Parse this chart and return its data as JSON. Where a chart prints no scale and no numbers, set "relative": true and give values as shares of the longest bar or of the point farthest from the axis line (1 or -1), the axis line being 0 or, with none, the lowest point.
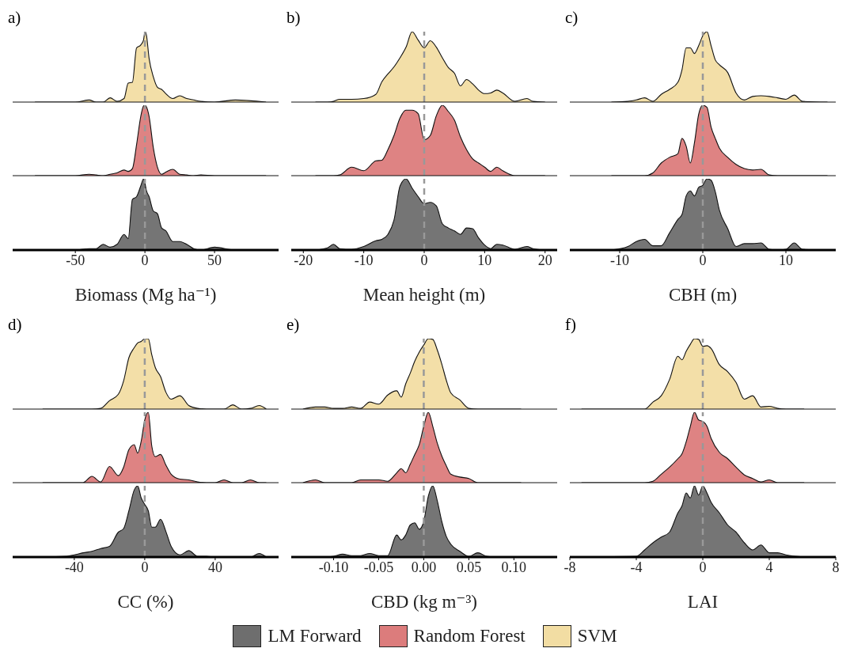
{
  "chart_data": [
    {
      "type": "area",
      "title": "a)",
      "relative": true,
      "tick_labels": false,
      "xlim": [
        -95,
        96
      ],
      "x": [
        -79,
        -70,
        -60,
        -50,
        -40,
        -35,
        -30,
        -25,
        -20,
        -15,
        -12,
        -9,
        -6,
        -3,
        -1,
        0,
        1,
        3,
        6,
        9,
        12,
        15,
        20,
        25,
        30,
        35,
        40,
        50,
        65,
        87
      ],
      "series": [
        {
          "name": "SVM",
          "color": "#f2dda3",
          "values": [
            0,
            0,
            0,
            0,
            0.03,
            0,
            0,
            0.06,
            0.01,
            0.05,
            0.27,
            0.28,
            0.77,
            0.81,
            0.88,
            1,
            0.96,
            0.62,
            0.36,
            0.21,
            0.18,
            0.12,
            0.05,
            0.09,
            0.05,
            0.03,
            0.01,
            0,
            0.03,
            0
          ]
        }
      ],
      "ref_lines": [
        {
          "axis": "x",
          "value": 0,
          "color": "#999999",
          "line_style": "dashed"
        }
      ]
    },
    {
      "type": "area",
      "relative": true,
      "tick_labels": false,
      "xlim": [
        -95,
        96
      ],
      "x": [
        -79,
        -70,
        -60,
        -50,
        -40,
        -35,
        -30,
        -25,
        -20,
        -15,
        -12,
        -9,
        -6,
        -3,
        -1,
        0,
        1,
        3,
        6,
        9,
        12,
        15,
        20,
        25,
        30,
        35,
        40,
        50,
        65,
        87
      ],
      "series": [
        {
          "name": "Random Forest",
          "color": "#dc7c7c",
          "values": [
            0,
            0,
            0,
            0,
            0.02,
            0.01,
            0,
            0.02,
            0.04,
            0.08,
            0.06,
            0.1,
            0.44,
            0.84,
            0.99,
            1,
            0.98,
            0.84,
            0.4,
            0.12,
            0.02,
            0.05,
            0.09,
            0.02,
            0.01,
            0,
            0.01,
            0,
            0,
            0
          ]
        }
      ],
      "ref_lines": [
        {
          "axis": "x",
          "value": 0,
          "color": "#999999",
          "line_style": "dashed"
        }
      ]
    },
    {
      "type": "area",
      "xlabel": "Biomass (Mg ha⁻¹)",
      "relative": true,
      "xlim": [
        -95,
        96
      ],
      "xticks": [
        -50,
        0,
        50
      ],
      "x": [
        -79,
        -70,
        -60,
        -50,
        -40,
        -35,
        -30,
        -25,
        -20,
        -15,
        -12,
        -9,
        -6,
        -3,
        -1,
        0,
        1,
        3,
        6,
        9,
        12,
        15,
        20,
        25,
        30,
        35,
        40,
        50,
        65,
        87
      ],
      "series": [
        {
          "name": "LM Forward",
          "color": "#6e6e6e",
          "values": [
            0,
            0,
            0,
            0,
            0.02,
            0.02,
            0.08,
            0.04,
            0.08,
            0.22,
            0.16,
            0.71,
            0.75,
            0.9,
            1,
            0.94,
            0.84,
            0.75,
            0.55,
            0.51,
            0.31,
            0.27,
            0.12,
            0.12,
            0.08,
            0.02,
            0,
            0.04,
            0,
            0
          ]
        }
      ],
      "ref_lines": [
        {
          "axis": "x",
          "value": 0,
          "color": "#999999",
          "line_style": "dashed"
        }
      ]
    },
    {
      "type": "area",
      "title": "b)",
      "relative": true,
      "tick_labels": false,
      "xlim": [
        -22,
        22
      ],
      "x": [
        -18,
        -16,
        -15,
        -14,
        -12,
        -10,
        -8,
        -7,
        -6,
        -5,
        -4,
        -3,
        -2,
        -1,
        0,
        1,
        2,
        3,
        4,
        5,
        6,
        7,
        8,
        9,
        10,
        11,
        12,
        13,
        15,
        17,
        18,
        20
      ],
      "series": [
        {
          "name": "SVM",
          "color": "#f2dda3",
          "values": [
            0,
            0,
            0.01,
            0.04,
            0.04,
            0.05,
            0.11,
            0.29,
            0.4,
            0.5,
            0.63,
            0.78,
            1,
            0.88,
            0.77,
            0.87,
            0.78,
            0.63,
            0.49,
            0.41,
            0.23,
            0.32,
            0.26,
            0.17,
            0.12,
            0.13,
            0.17,
            0.13,
            0.01,
            0.05,
            0.01,
            0
          ]
        }
      ],
      "ref_lines": [
        {
          "axis": "x",
          "value": 0,
          "color": "#999999",
          "line_style": "dashed"
        }
      ]
    },
    {
      "type": "area",
      "relative": true,
      "tick_labels": false,
      "xlim": [
        -22,
        22
      ],
      "x": [
        -18,
        -16,
        -15,
        -14,
        -12,
        -10,
        -8,
        -7,
        -6,
        -5,
        -4,
        -3,
        -2,
        -1,
        0,
        1,
        2,
        3,
        4,
        5,
        6,
        7,
        8,
        9,
        10,
        11,
        12,
        13,
        15,
        17,
        18,
        20
      ],
      "series": [
        {
          "name": "Random Forest",
          "color": "#dc7c7c",
          "values": [
            0,
            0,
            0,
            0.01,
            0.12,
            0.07,
            0.21,
            0.22,
            0.37,
            0.57,
            0.82,
            0.93,
            0.93,
            0.88,
            0.51,
            0.57,
            0.85,
            1,
            0.91,
            0.79,
            0.55,
            0.37,
            0.24,
            0.18,
            0.12,
            0.06,
            0.12,
            0.07,
            0,
            0,
            0,
            0
          ]
        }
      ],
      "ref_lines": [
        {
          "axis": "x",
          "value": 0,
          "color": "#999999",
          "line_style": "dashed"
        }
      ]
    },
    {
      "type": "area",
      "xlabel": "Mean height (m)",
      "relative": true,
      "xlim": [
        -22,
        22
      ],
      "xticks": [
        -20,
        -10,
        0,
        10,
        20
      ],
      "x": [
        -18,
        -16,
        -15,
        -14,
        -12,
        -10,
        -8,
        -7,
        -6,
        -5,
        -4,
        -3,
        -2,
        -1,
        0,
        1,
        2,
        3,
        4,
        5,
        6,
        7,
        8,
        9,
        10,
        11,
        12,
        13,
        15,
        17,
        18,
        20
      ],
      "series": [
        {
          "name": "LM Forward",
          "color": "#6e6e6e",
          "values": [
            0,
            0.03,
            0.08,
            0.02,
            0.01,
            0.05,
            0.13,
            0.15,
            0.22,
            0.42,
            0.9,
            1,
            0.87,
            0.75,
            0.65,
            0.67,
            0.62,
            0.37,
            0.31,
            0.27,
            0.22,
            0.31,
            0.3,
            0.17,
            0.07,
            0.02,
            0.08,
            0.07,
            0.01,
            0.05,
            0.02,
            0
          ]
        }
      ],
      "ref_lines": [
        {
          "axis": "x",
          "value": 0,
          "color": "#999999",
          "line_style": "dashed"
        }
      ]
    },
    {
      "type": "area",
      "title": "c)",
      "relative": true,
      "tick_labels": false,
      "xlim": [
        -16,
        16
      ],
      "x": [
        -11,
        -9,
        -8,
        -7,
        -6,
        -5,
        -4,
        -3,
        -2.5,
        -2,
        -1.5,
        -1,
        -0.5,
        0,
        0.5,
        1,
        1.5,
        2,
        3,
        4,
        5,
        6,
        7,
        8,
        9,
        10,
        11,
        12,
        15
      ],
      "series": [
        {
          "name": "SVM",
          "color": "#f2dda3",
          "values": [
            0,
            0.01,
            0.03,
            0.06,
            0.01,
            0.11,
            0.18,
            0.28,
            0.46,
            0.77,
            0.77,
            0.69,
            0.8,
            0.94,
            1,
            0.8,
            0.6,
            0.53,
            0.42,
            0.13,
            0.03,
            0.08,
            0.09,
            0.08,
            0.06,
            0.04,
            0.1,
            0.01,
            0
          ]
        }
      ],
      "ref_lines": [
        {
          "axis": "x",
          "value": 0,
          "color": "#999999",
          "line_style": "dashed"
        }
      ]
    },
    {
      "type": "area",
      "relative": true,
      "tick_labels": false,
      "xlim": [
        -16,
        16
      ],
      "x": [
        -11,
        -9,
        -8,
        -7,
        -6,
        -5,
        -4,
        -3,
        -2.5,
        -2,
        -1.5,
        -1,
        -0.5,
        0,
        0.5,
        1,
        1.5,
        2,
        3,
        4,
        5,
        6,
        7,
        8,
        9,
        10,
        11,
        12,
        15
      ],
      "series": [
        {
          "name": "Random Forest",
          "color": "#dc7c7c",
          "values": [
            0,
            0,
            0,
            0,
            0.04,
            0.18,
            0.26,
            0.31,
            0.53,
            0.42,
            0.18,
            0.47,
            0.87,
            1,
            0.97,
            0.69,
            0.53,
            0.39,
            0.26,
            0.16,
            0.1,
            0.08,
            0.09,
            0.01,
            0,
            0,
            0,
            0,
            0
          ]
        }
      ],
      "ref_lines": [
        {
          "axis": "x",
          "value": 0,
          "color": "#999999",
          "line_style": "dashed"
        }
      ]
    },
    {
      "type": "area",
      "xlabel": "CBH (m)",
      "relative": true,
      "xlim": [
        -16,
        16
      ],
      "xticks": [
        -10,
        0,
        10
      ],
      "x": [
        -11,
        -9,
        -8,
        -7,
        -6,
        -5,
        -4,
        -3,
        -2.5,
        -2,
        -1.5,
        -1,
        -0.5,
        0,
        0.5,
        1,
        1.5,
        2,
        3,
        4,
        5,
        6,
        7,
        8,
        9,
        10,
        11,
        12,
        15
      ],
      "series": [
        {
          "name": "LM Forward",
          "color": "#6e6e6e",
          "values": [
            0,
            0.05,
            0.12,
            0.15,
            0.06,
            0.06,
            0.24,
            0.43,
            0.5,
            0.76,
            0.83,
            0.76,
            0.88,
            0.91,
            1,
            0.98,
            0.82,
            0.56,
            0.3,
            0.05,
            0.09,
            0.09,
            0.1,
            0.01,
            0,
            0.01,
            0.1,
            0.01,
            0
          ]
        }
      ],
      "ref_lines": [
        {
          "axis": "x",
          "value": 0,
          "color": "#999999",
          "line_style": "dashed"
        }
      ]
    },
    {
      "type": "area",
      "title": "d)",
      "relative": true,
      "tick_labels": false,
      "xlim": [
        -75,
        76
      ],
      "x": [
        -58,
        -45,
        -40,
        -35,
        -30,
        -25,
        -20,
        -15,
        -12,
        -9,
        -6,
        -4,
        -2,
        0,
        2,
        4,
        6,
        9,
        12,
        15,
        20,
        25,
        30,
        35,
        40,
        45,
        50,
        55,
        60,
        65,
        69
      ],
      "series": [
        {
          "name": "SVM",
          "color": "#f2dda3",
          "values": [
            0,
            0,
            0,
            0,
            0,
            0.01,
            0.12,
            0.21,
            0.4,
            0.73,
            0.87,
            0.94,
            0.96,
            1,
            1,
            0.77,
            0.59,
            0.46,
            0.24,
            0.14,
            0.19,
            0.05,
            0.01,
            0,
            0,
            0,
            0.06,
            0,
            0.01,
            0.05,
            0
          ]
        }
      ],
      "ref_lines": [
        {
          "axis": "x",
          "value": 0,
          "color": "#999999",
          "line_style": "dashed"
        }
      ]
    },
    {
      "type": "area",
      "relative": true,
      "tick_labels": false,
      "xlim": [
        -75,
        76
      ],
      "x": [
        -58,
        -45,
        -40,
        -35,
        -30,
        -25,
        -20,
        -15,
        -12,
        -9,
        -6,
        -4,
        -2,
        0,
        2,
        4,
        6,
        9,
        12,
        15,
        20,
        25,
        30,
        35,
        40,
        45,
        50,
        55,
        60,
        65,
        69
      ],
      "series": [
        {
          "name": "Random Forest",
          "color": "#dc7c7c",
          "values": [
            0,
            0,
            0,
            0,
            0.09,
            0.01,
            0.23,
            0.1,
            0.22,
            0.47,
            0.54,
            0.42,
            0.59,
            0.89,
            1,
            0.52,
            0.37,
            0.4,
            0.25,
            0.12,
            0.05,
            0.04,
            0.01,
            0,
            0,
            0.04,
            0,
            0,
            0.04,
            0,
            0
          ]
        }
      ],
      "ref_lines": [
        {
          "axis": "x",
          "value": 0,
          "color": "#999999",
          "line_style": "dashed"
        }
      ]
    },
    {
      "type": "area",
      "xlabel": "CC (%)",
      "relative": true,
      "xlim": [
        -75,
        76
      ],
      "xticks": [
        -40,
        0,
        40
      ],
      "x": [
        -58,
        -45,
        -40,
        -35,
        -30,
        -25,
        -20,
        -15,
        -12,
        -9,
        -6,
        -4,
        -2,
        0,
        2,
        4,
        6,
        9,
        12,
        15,
        20,
        25,
        30,
        35,
        40,
        45,
        50,
        55,
        60,
        65,
        69
      ],
      "series": [
        {
          "name": "LM Forward",
          "color": "#6e6e6e",
          "values": [
            0,
            0.01,
            0.03,
            0.06,
            0.08,
            0.12,
            0.15,
            0.35,
            0.4,
            0.65,
            0.94,
            1,
            0.83,
            0.74,
            0.65,
            0.42,
            0.42,
            0.53,
            0.36,
            0.15,
            0.03,
            0.09,
            0.01,
            0.01,
            0,
            0,
            0,
            0,
            0,
            0.05,
            0
          ]
        }
      ],
      "ref_lines": [
        {
          "axis": "x",
          "value": 0,
          "color": "#999999",
          "line_style": "dashed"
        }
      ]
    },
    {
      "type": "area",
      "title": "e)",
      "relative": true,
      "tick_labels": false,
      "xlim": [
        -0.147,
        0.148
      ],
      "x": [
        -0.134,
        -0.12,
        -0.11,
        -0.1,
        -0.09,
        -0.08,
        -0.07,
        -0.06,
        -0.05,
        -0.04,
        -0.03,
        -0.025,
        -0.02,
        -0.015,
        -0.01,
        -0.005,
        0,
        0.005,
        0.01,
        0.015,
        0.02,
        0.025,
        0.03,
        0.04,
        0.05,
        0.06,
        0.07,
        0.08,
        0.108
      ],
      "series": [
        {
          "name": "SVM",
          "color": "#f2dda3",
          "values": [
            0,
            0.03,
            0.03,
            0.01,
            0.01,
            0.03,
            0.01,
            0.1,
            0.07,
            0.2,
            0.26,
            0.17,
            0.36,
            0.51,
            0.68,
            0.81,
            0.91,
            1,
            0.99,
            0.84,
            0.64,
            0.41,
            0.23,
            0.13,
            0.01,
            0,
            0,
            0,
            0
          ]
        }
      ],
      "ref_lines": [
        {
          "axis": "x",
          "value": 0,
          "color": "#999999",
          "line_style": "dashed"
        }
      ]
    },
    {
      "type": "area",
      "relative": true,
      "tick_labels": false,
      "xlim": [
        -0.147,
        0.148
      ],
      "x": [
        -0.134,
        -0.12,
        -0.11,
        -0.1,
        -0.09,
        -0.08,
        -0.07,
        -0.06,
        -0.05,
        -0.04,
        -0.03,
        -0.025,
        -0.02,
        -0.015,
        -0.01,
        -0.005,
        0,
        0.005,
        0.01,
        0.015,
        0.02,
        0.025,
        0.03,
        0.04,
        0.05,
        0.06,
        0.07,
        0.08,
        0.108
      ],
      "series": [
        {
          "name": "Random Forest",
          "color": "#dc7c7c",
          "values": [
            0,
            0.04,
            0,
            0,
            0,
            0,
            0.04,
            0.04,
            0.04,
            0.02,
            0.14,
            0.2,
            0.14,
            0.26,
            0.4,
            0.54,
            0.8,
            1,
            0.8,
            0.56,
            0.38,
            0.24,
            0.12,
            0.08,
            0.06,
            0,
            0,
            0,
            0
          ]
        }
      ],
      "ref_lines": [
        {
          "axis": "x",
          "value": 0,
          "color": "#999999",
          "line_style": "dashed"
        }
      ]
    },
    {
      "type": "area",
      "xlabel": "CBD (kg m⁻³)",
      "relative": true,
      "xlim": [
        -0.147,
        0.148
      ],
      "xticks": [
        {
          "value": -0.1,
          "label": "-0.10"
        },
        {
          "value": -0.05,
          "label": "-0.05"
        },
        {
          "value": 0,
          "label": "0.00"
        },
        {
          "value": 0.05,
          "label": "0.05"
        },
        {
          "value": 0.1,
          "label": "0.10"
        }
      ],
      "x": [
        -0.134,
        -0.12,
        -0.11,
        -0.1,
        -0.09,
        -0.08,
        -0.07,
        -0.06,
        -0.05,
        -0.04,
        -0.03,
        -0.025,
        -0.02,
        -0.015,
        -0.01,
        -0.005,
        0,
        0.005,
        0.01,
        0.015,
        0.02,
        0.025,
        0.03,
        0.04,
        0.05,
        0.06,
        0.07,
        0.08,
        0.108
      ],
      "series": [
        {
          "name": "LM Forward",
          "color": "#6e6e6e",
          "values": [
            0,
            0,
            0,
            0.01,
            0.04,
            0.02,
            0.02,
            0.05,
            0.02,
            0.02,
            0.31,
            0.24,
            0.31,
            0.45,
            0.48,
            0.39,
            0.5,
            0.85,
            1,
            0.79,
            0.5,
            0.29,
            0.18,
            0.08,
            0.01,
            0.06,
            0.01,
            0,
            0
          ]
        }
      ],
      "ref_lines": [
        {
          "axis": "x",
          "value": 0,
          "color": "#999999",
          "line_style": "dashed"
        }
      ],
      "legend": "bottom"
    },
    {
      "type": "area",
      "title": "f)",
      "relative": true,
      "tick_labels": false,
      "xlim": [
        -8,
        8
      ],
      "x": [
        -7.3,
        -4,
        -3.5,
        -3,
        -2.5,
        -2,
        -1.5,
        -1.25,
        -1,
        -0.75,
        -0.5,
        -0.25,
        0,
        0.25,
        0.5,
        1,
        1.5,
        2,
        2.5,
        3,
        3.5,
        4,
        4.5,
        5,
        6.1
      ],
      "series": [
        {
          "name": "SVM",
          "color": "#f2dda3",
          "values": [
            0,
            0,
            0,
            0.1,
            0.19,
            0.42,
            0.75,
            0.7,
            0.82,
            0.92,
            1,
            0.99,
            0.89,
            0.9,
            0.86,
            0.63,
            0.53,
            0.38,
            0.14,
            0.19,
            0.03,
            0.04,
            0.01,
            0,
            0
          ]
        }
      ],
      "ref_lines": [
        {
          "axis": "x",
          "value": 0,
          "color": "#999999",
          "line_style": "dashed"
        }
      ]
    },
    {
      "type": "area",
      "relative": true,
      "tick_labels": false,
      "xlim": [
        -8,
        8
      ],
      "x": [
        -7.3,
        -4,
        -3.5,
        -3,
        -2.5,
        -2,
        -1.5,
        -1.25,
        -1,
        -0.75,
        -0.5,
        -0.25,
        0,
        0.25,
        0.5,
        1,
        1.5,
        2,
        2.5,
        3,
        3.5,
        4,
        4.5,
        5,
        6.1
      ],
      "series": [
        {
          "name": "Random Forest",
          "color": "#dc7c7c",
          "values": [
            0,
            0,
            0,
            0.02,
            0.12,
            0.22,
            0.34,
            0.41,
            0.58,
            0.8,
            1,
            0.89,
            0.87,
            0.8,
            0.63,
            0.43,
            0.34,
            0.22,
            0.11,
            0.06,
            0.01,
            0.04,
            0,
            0,
            0
          ]
        }
      ],
      "ref_lines": [
        {
          "axis": "x",
          "value": 0,
          "color": "#999999",
          "line_style": "dashed"
        }
      ]
    },
    {
      "type": "area",
      "xlabel": "LAI",
      "relative": true,
      "xlim": [
        -8,
        8
      ],
      "xticks": [
        -8,
        -4,
        0,
        4,
        8
      ],
      "x": [
        -7.3,
        -4,
        -3.5,
        -3,
        -2.5,
        -2,
        -1.5,
        -1.25,
        -1,
        -0.75,
        -0.5,
        -0.25,
        0,
        0.25,
        0.5,
        1,
        1.5,
        2,
        2.5,
        3,
        3.5,
        4,
        4.5,
        5,
        6.1
      ],
      "series": [
        {
          "name": "LM Forward",
          "color": "#6e6e6e",
          "values": [
            0,
            0.01,
            0.1,
            0.2,
            0.28,
            0.35,
            0.62,
            0.72,
            0.9,
            0.83,
            1,
            0.87,
            1,
            0.9,
            0.77,
            0.62,
            0.45,
            0.35,
            0.2,
            0.1,
            0.17,
            0.06,
            0.06,
            0.03,
            0
          ]
        }
      ],
      "ref_lines": [
        {
          "axis": "x",
          "value": 0,
          "color": "#999999",
          "line_style": "dashed"
        }
      ]
    }
  ]
}
